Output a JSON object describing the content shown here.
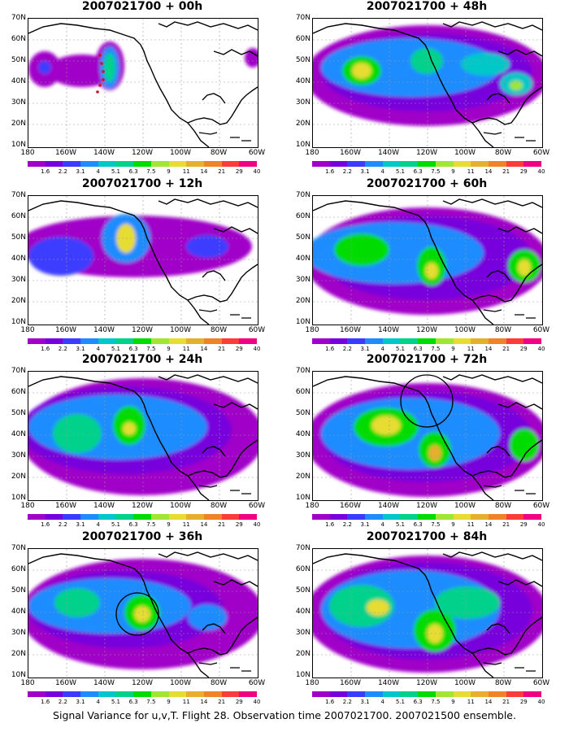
{
  "panels": [
    {
      "title": "2007021700 + 00h"
    },
    {
      "title": "2007021700 + 48h"
    },
    {
      "title": "2007021700 + 12h"
    },
    {
      "title": "2007021700 + 60h"
    },
    {
      "title": "2007021700 + 24h"
    },
    {
      "title": "2007021700 + 72h"
    },
    {
      "title": "2007021700 + 36h"
    },
    {
      "title": "2007021700 + 84h"
    }
  ],
  "lat_labels": [
    "70N",
    "60N",
    "50N",
    "40N",
    "30N",
    "20N",
    "10N"
  ],
  "lon_labels": [
    "180",
    "160W",
    "140W",
    "120W",
    "100W",
    "80W",
    "60W"
  ],
  "colorbar": {
    "levels": [
      "1.6",
      "2.2",
      "3.1",
      "4",
      "5.1",
      "6.3",
      "7.5",
      "9",
      "11",
      "14",
      "21",
      "29",
      "40"
    ],
    "colors": [
      "#a000c8",
      "#7800dc",
      "#3c3cff",
      "#1e8cff",
      "#00c8c8",
      "#00d28c",
      "#00dc00",
      "#a0e632",
      "#e6dc32",
      "#e6af2d",
      "#f08228",
      "#fa3c3c",
      "#f00082"
    ]
  },
  "caption": "Signal Variance for u,v,T. Flight 28. Observation time 2007021700. 2007021500 ensemble."
}
